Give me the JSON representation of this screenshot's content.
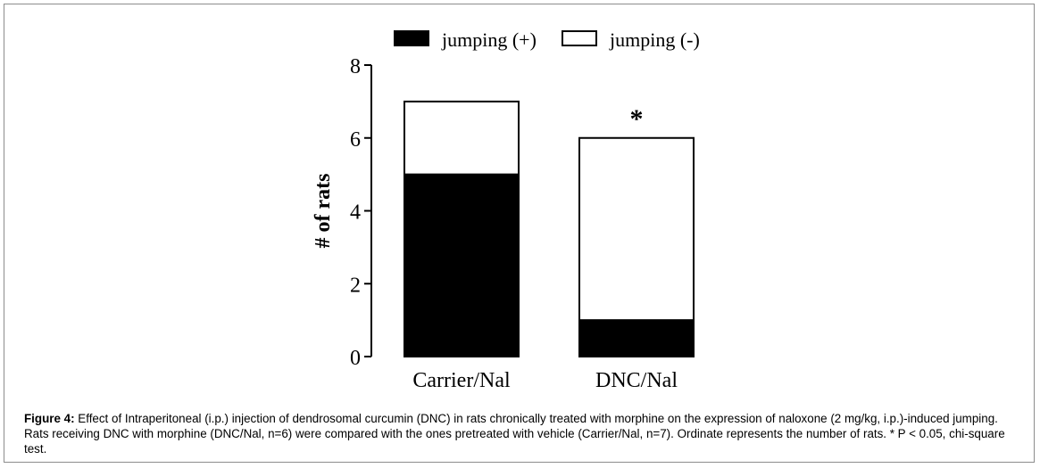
{
  "chart_data": {
    "type": "bar",
    "stacked": true,
    "categories": [
      "Carrier/Nal",
      "DNC/Nal"
    ],
    "series": [
      {
        "name": "jumping (+)",
        "values": [
          5,
          1
        ],
        "color": "#000000"
      },
      {
        "name": "jumping (-)",
        "values": [
          2,
          5
        ],
        "color": "#ffffff"
      }
    ],
    "ylabel": "# of rats",
    "xlabel": "",
    "ylim": [
      0,
      8
    ],
    "yticks": [
      "0",
      "2",
      "4",
      "6",
      "8"
    ],
    "annotations": [
      {
        "category": "DNC/Nal",
        "text": "*"
      }
    ],
    "legend_position": "top",
    "grid": false
  },
  "caption": {
    "label": "Figure 4:",
    "text": "Effect of Intraperitoneal (i.p.) injection of dendrosomal curcumin (DNC) in rats chronically treated with morphine on the expression of naloxone (2 mg/kg, i.p.)-induced jumping. Rats receiving DNC with morphine (DNC/Nal, n=6) were compared with the ones pretreated with vehicle (Carrier/Nal, n=7). Ordinate represents the number of rats. * P < 0.05, chi-square test."
  }
}
